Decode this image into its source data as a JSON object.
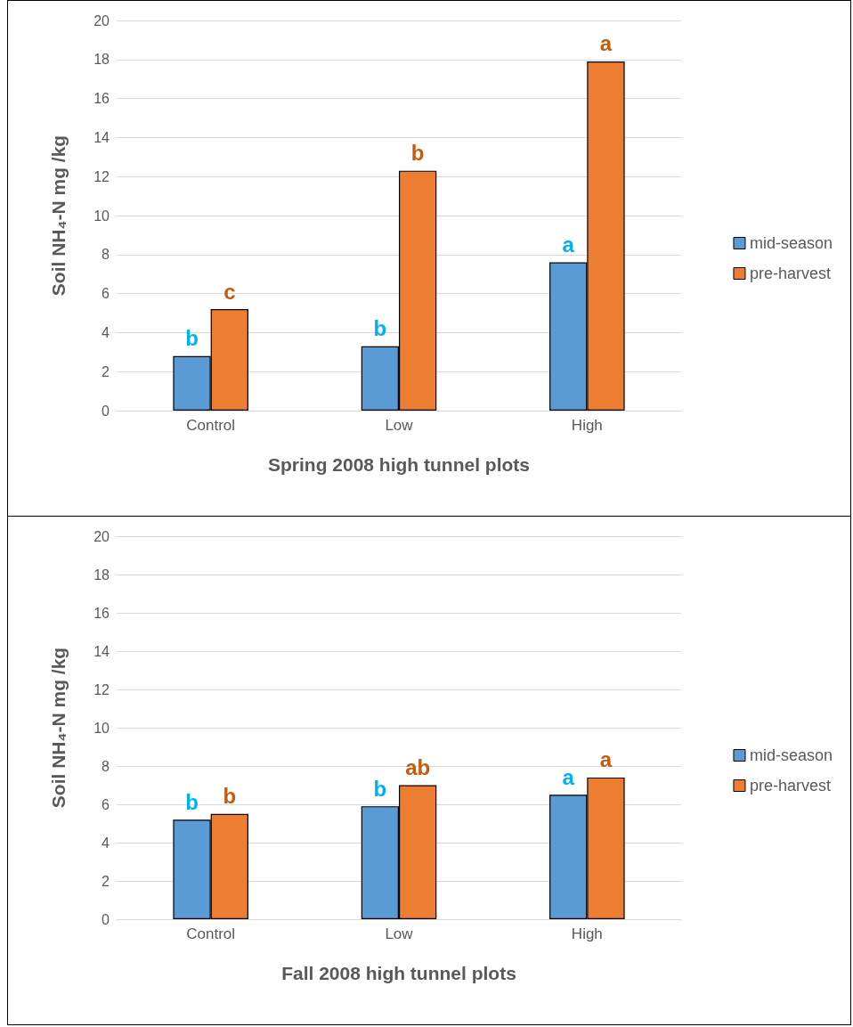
{
  "chart_data": [
    {
      "type": "bar",
      "xlabel": "Spring 2008 high tunnel plots",
      "ylabel": "Soil NH₄-N mg /kg",
      "categories": [
        "Control",
        "Low",
        "High"
      ],
      "ylim": [
        0,
        20
      ],
      "yticks": [
        0,
        2,
        4,
        6,
        8,
        10,
        12,
        14,
        16,
        18,
        20
      ],
      "grid": "y",
      "legend": "right",
      "series": [
        {
          "name": "mid-season",
          "color": "#5b9bd5",
          "values": [
            2.8,
            3.3,
            7.6
          ],
          "value_labels": [
            "b",
            "b",
            "a"
          ]
        },
        {
          "name": "pre-harvest",
          "color": "#ed7d31",
          "values": [
            5.2,
            12.3,
            17.9
          ],
          "value_labels": [
            "c",
            "b",
            "a"
          ]
        }
      ]
    },
    {
      "type": "bar",
      "xlabel": "Fall 2008 high tunnel plots",
      "ylabel": "Soil NH₄-N mg /kg",
      "categories": [
        "Control",
        "Low",
        "High"
      ],
      "ylim": [
        0,
        20
      ],
      "yticks": [
        0,
        2,
        4,
        6,
        8,
        10,
        12,
        14,
        16,
        18,
        20
      ],
      "grid": "y",
      "legend": "right",
      "series": [
        {
          "name": "mid-season",
          "color": "#5b9bd5",
          "values": [
            5.2,
            5.9,
            6.5
          ],
          "value_labels": [
            "b",
            "b",
            "a"
          ]
        },
        {
          "name": "pre-harvest",
          "color": "#ed7d31",
          "values": [
            5.5,
            7.0,
            7.4
          ],
          "value_labels": [
            "b",
            "ab",
            "a"
          ]
        }
      ]
    }
  ]
}
